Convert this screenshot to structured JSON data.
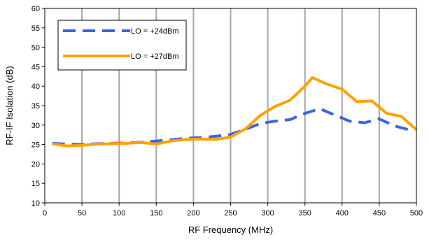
{
  "chart_data": {
    "type": "line",
    "xlabel": "RF Frequency (MHz)",
    "ylabel": "RF-IF Isolation (dB)",
    "xlim": [
      0,
      500
    ],
    "ylim": [
      10,
      60
    ],
    "xticks": [
      0,
      50,
      100,
      150,
      200,
      250,
      300,
      350,
      400,
      450,
      500
    ],
    "yticks": [
      10,
      15,
      20,
      25,
      30,
      35,
      40,
      45,
      50,
      55,
      60
    ],
    "grid": {
      "vertical": true,
      "horizontal": false
    },
    "legend": {
      "position": "top-left",
      "boxed": true
    },
    "series": [
      {
        "name": "LO = +24dBm",
        "color": "#3A66E0",
        "style": "dashed",
        "x": [
          10,
          30,
          50,
          70,
          90,
          110,
          130,
          150,
          170,
          190,
          210,
          230,
          250,
          270,
          290,
          310,
          330,
          350,
          370,
          390,
          410,
          430,
          450,
          470,
          490
        ],
        "y": [
          25.3,
          25.1,
          25.0,
          25.2,
          25.3,
          25.4,
          25.6,
          25.9,
          26.2,
          26.6,
          26.8,
          27.1,
          27.6,
          28.9,
          30.4,
          31.0,
          31.4,
          33.0,
          34.2,
          32.6,
          31.0,
          30.6,
          31.6,
          29.8,
          28.8
        ]
      },
      {
        "name": "LO = +27dBm",
        "color": "#FFA200",
        "style": "solid",
        "x": [
          10,
          30,
          50,
          70,
          90,
          110,
          130,
          150,
          170,
          190,
          210,
          230,
          250,
          270,
          290,
          310,
          330,
          350,
          360,
          380,
          400,
          420,
          440,
          460,
          480,
          500
        ],
        "y": [
          25.2,
          24.6,
          24.8,
          25.1,
          25.2,
          25.3,
          25.5,
          25.1,
          25.9,
          26.3,
          26.4,
          26.3,
          26.9,
          29.0,
          32.5,
          34.8,
          36.4,
          40.0,
          42.2,
          40.5,
          39.2,
          36.0,
          36.2,
          33.0,
          32.2,
          28.8
        ]
      }
    ]
  }
}
